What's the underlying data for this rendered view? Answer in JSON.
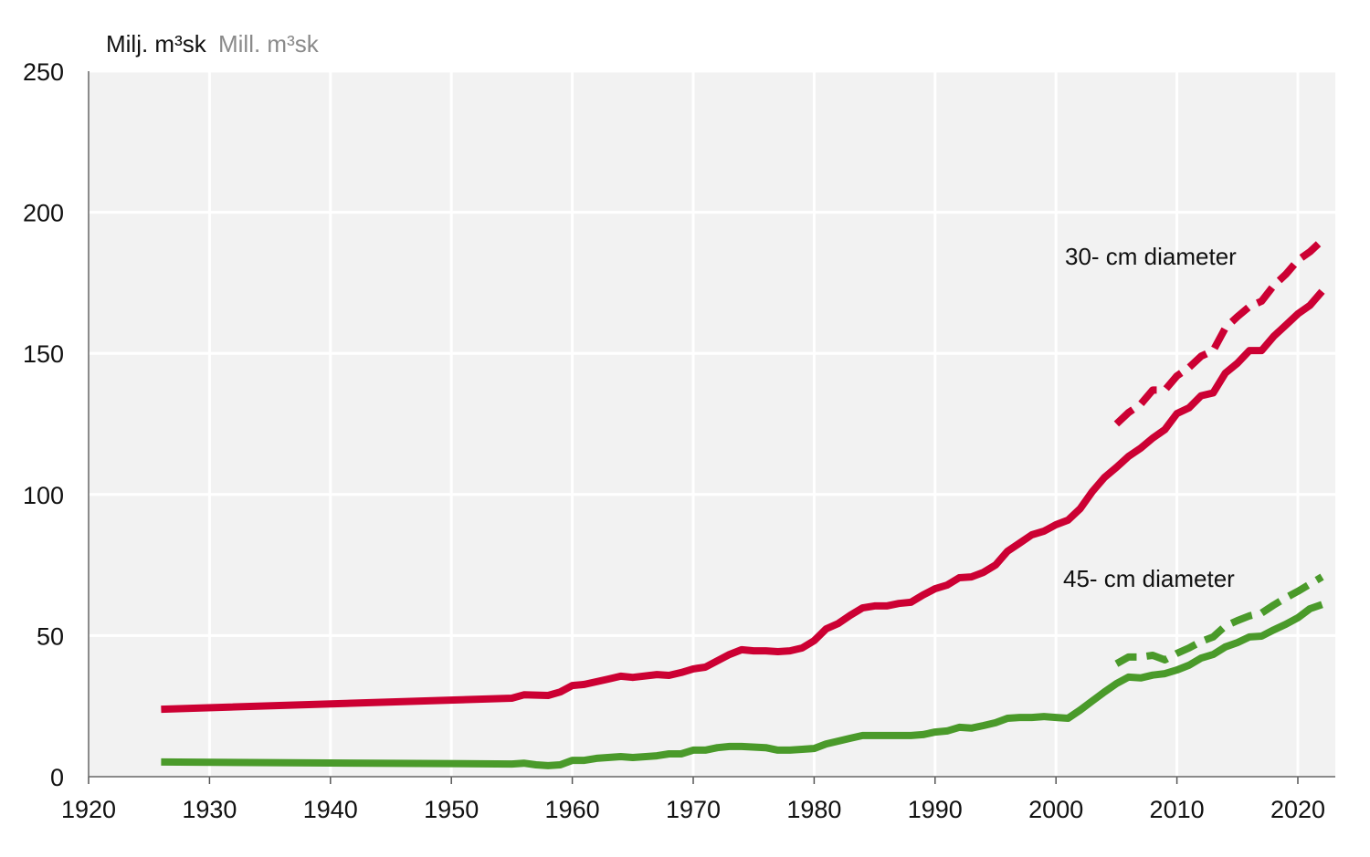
{
  "chart_data": {
    "type": "line",
    "title": "",
    "ylabel_primary": "Milj. m³sk",
    "ylabel_secondary": "Mill. m³sk",
    "xlabel": "",
    "xlim": [
      1920,
      2023
    ],
    "ylim": [
      0,
      250
    ],
    "xticks": [
      "1920",
      "1930",
      "1940",
      "1950",
      "1960",
      "1970",
      "1980",
      "1990",
      "2000",
      "2010",
      "2020"
    ],
    "yticks": [
      "0",
      "50",
      "100",
      "150",
      "200",
      "250"
    ],
    "grid": true,
    "annotations": [
      {
        "text": "30- cm diameter",
        "year": 2006,
        "value": 184
      },
      {
        "text": "45- cm diameter",
        "year": 2006,
        "value": 70
      }
    ],
    "colors": {
      "red": "#cc0033",
      "green": "#4a9a2a",
      "plot_bg": "#f2f2f2",
      "grid": "#ffffff",
      "secondary_label": "#8a8a8a"
    },
    "series": [
      {
        "name": "30- cm diameter",
        "color": "#cc0033",
        "style": "solid",
        "x": [
          1926,
          1955,
          1956,
          1958,
          1959,
          1960,
          1961,
          1963,
          1964,
          1965,
          1967,
          1968,
          1969,
          1970,
          1971,
          1973,
          1974,
          1975,
          1976,
          1977,
          1978,
          1979,
          1980,
          1981,
          1982,
          1983,
          1984,
          1985,
          1986,
          1987,
          1988,
          1989,
          1990,
          1991,
          1992,
          1993,
          1994,
          1995,
          1996,
          1997,
          1998,
          1999,
          2000,
          2001,
          2002,
          2003,
          2004,
          2005,
          2006,
          2007,
          2008,
          2009,
          2010,
          2011,
          2012,
          2013,
          2014,
          2015,
          2016,
          2017,
          2018,
          2019,
          2020,
          2021,
          2022
        ],
        "y": [
          23.9,
          27.8,
          29,
          28.8,
          30,
          32.3,
          32.7,
          34.6,
          35.6,
          35.2,
          36.2,
          35.9,
          36.9,
          38.2,
          38.8,
          43.3,
          45,
          44.6,
          44.6,
          44.3,
          44.6,
          45.6,
          48.2,
          52.4,
          54.3,
          57.2,
          59.8,
          60.5,
          60.5,
          61.4,
          61.8,
          64.4,
          66.6,
          67.9,
          70.5,
          70.8,
          72.4,
          75,
          79.9,
          82.8,
          85.7,
          87,
          89.3,
          90.9,
          95,
          101,
          106,
          109.6,
          113.5,
          116.4,
          120,
          123,
          128.7,
          130.7,
          135,
          136,
          143,
          146.5,
          151,
          151,
          156,
          160,
          164,
          167,
          172
        ]
      },
      {
        "name": "30- cm diameter (dashed)",
        "color": "#cc0033",
        "style": "dashed",
        "x": [
          2005,
          2006,
          2007,
          2008,
          2009,
          2010,
          2011,
          2012,
          2013,
          2014,
          2015,
          2016,
          2017,
          2018,
          2019,
          2020,
          2021,
          2022
        ],
        "y": [
          125,
          129,
          132,
          137,
          137,
          142,
          145,
          149,
          151,
          159,
          163,
          166.6,
          168.5,
          174,
          178,
          183,
          186,
          190
        ]
      },
      {
        "name": "45- cm diameter",
        "color": "#4a9a2a",
        "style": "solid",
        "x": [
          1926,
          1955,
          1956,
          1957,
          1958,
          1959,
          1960,
          1961,
          1962,
          1964,
          1965,
          1967,
          1968,
          1969,
          1970,
          1971,
          1972,
          1973,
          1974,
          1976,
          1977,
          1978,
          1979,
          1980,
          1981,
          1982,
          1983,
          1984,
          1985,
          1986,
          1987,
          1988,
          1989,
          1990,
          1991,
          1992,
          1993,
          1994,
          1995,
          1996,
          1997,
          1998,
          1999,
          2000,
          2001,
          2002,
          2003,
          2004,
          2005,
          2006,
          2007,
          2008,
          2009,
          2010,
          2011,
          2012,
          2013,
          2014,
          2015,
          2016,
          2017,
          2018,
          2019,
          2020,
          2021,
          2022
        ],
        "y": [
          5.2,
          4.5,
          4.8,
          4.2,
          3.9,
          4.2,
          5.8,
          5.8,
          6.5,
          7.1,
          6.8,
          7.4,
          8.1,
          8.1,
          9.4,
          9.4,
          10.3,
          10.7,
          10.7,
          10.3,
          9.4,
          9.4,
          9.7,
          10,
          11.6,
          12.6,
          13.6,
          14.6,
          14.6,
          14.6,
          14.6,
          14.6,
          14.9,
          15.8,
          16.2,
          17.5,
          17.2,
          18.1,
          19.1,
          20.7,
          21,
          21,
          21.3,
          21,
          20.7,
          23.6,
          26.8,
          30,
          33,
          35.3,
          35,
          36,
          36.5,
          37.8,
          39.5,
          42,
          43.3,
          46,
          47.5,
          49.5,
          49.8,
          52,
          54,
          56.3,
          59.5,
          61
        ]
      },
      {
        "name": "45- cm diameter (dashed)",
        "color": "#4a9a2a",
        "style": "dashed",
        "x": [
          2005,
          2006,
          2007,
          2008,
          2009,
          2010,
          2011,
          2012,
          2013,
          2014,
          2015,
          2016,
          2017,
          2018,
          2019,
          2020,
          2021,
          2022
        ],
        "y": [
          40,
          42.4,
          42.4,
          43,
          41.4,
          43.7,
          45.6,
          47.9,
          49.5,
          53.4,
          55.3,
          57,
          58,
          60.8,
          63.4,
          65.7,
          68.2,
          70.8
        ]
      }
    ]
  }
}
